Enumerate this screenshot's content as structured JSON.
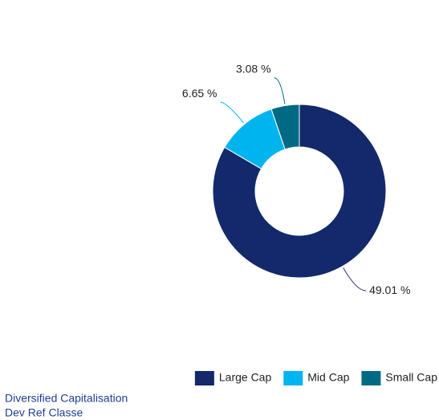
{
  "chart_data": {
    "type": "pie",
    "categories": [
      "Large Cap",
      "Mid Cap",
      "Small Cap"
    ],
    "values": [
      49.01,
      6.65,
      3.08
    ],
    "value_labels": [
      "49.01 %",
      "6.65 %",
      "3.08 %"
    ],
    "colors": [
      "#13296b",
      "#00b5ef",
      "#006a84"
    ],
    "legend": "bottom-right",
    "caption": [
      "Diversified Capitalisation",
      "Dev Ref Classe"
    ]
  }
}
